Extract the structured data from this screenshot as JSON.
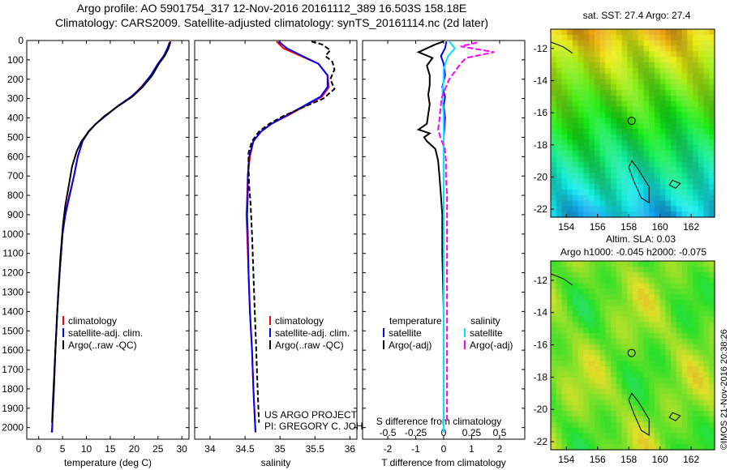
{
  "header": {
    "title_line1": "Argo profile: AO 5901754_317 12-Nov-2016 20161112_389 16.503S 158.18E",
    "title_line2": "Climatology: CARS2009. Satellite-adjusted climatology: synTS_20161114.nc (2d later)"
  },
  "colors": {
    "climatology": "#ff0000",
    "satellite": "#0000ff",
    "argo": "#000000",
    "sal_satellite": "#00e5ff",
    "sal_argo": "#ff00ff"
  },
  "chart_data": [
    {
      "type": "line",
      "xlabel": "temperature (deg C)",
      "ylabel": "",
      "xlim": [
        -2.5,
        31.5
      ],
      "ylim": [
        2060,
        0
      ],
      "xticks": [
        0,
        5,
        10,
        15,
        20,
        25,
        30
      ],
      "yticks": [
        0,
        100,
        200,
        300,
        400,
        500,
        600,
        700,
        800,
        900,
        1000,
        1100,
        1200,
        1300,
        1400,
        1500,
        1600,
        1700,
        1800,
        1900,
        2000
      ],
      "legend": {
        "placement": "lower-center",
        "entries": [
          {
            "label": "climatology",
            "color": "#ff0000"
          },
          {
            "label": "satellite-adj. clim.",
            "color": "#0000ff"
          },
          {
            "label": "Argo(..raw -QC)",
            "color": "#000000"
          }
        ]
      },
      "series": [
        {
          "name": "climatology",
          "color": "#ff0000",
          "points": [
            [
              27.6,
              10
            ],
            [
              27.2,
              40
            ],
            [
              26.2,
              80
            ],
            [
              25,
              120
            ],
            [
              23.5,
              180
            ],
            [
              21.5,
              240
            ],
            [
              19.5,
              290
            ],
            [
              16.5,
              340
            ],
            [
              14,
              390
            ],
            [
              12,
              430
            ],
            [
              10.5,
              470
            ],
            [
              9.2,
              520
            ],
            [
              8.2,
              600
            ],
            [
              7.4,
              700
            ],
            [
              6.4,
              800
            ],
            [
              5.5,
              900
            ],
            [
              5,
              1000
            ],
            [
              4.4,
              1200
            ],
            [
              3.9,
              1400
            ],
            [
              3.5,
              1600
            ],
            [
              3.2,
              1800
            ],
            [
              2.9,
              1950
            ],
            [
              2.8,
              2000
            ],
            [
              2.7,
              2025
            ]
          ]
        },
        {
          "name": "satellite-adj. clim.",
          "color": "#0000ff",
          "points": [
            [
              27.4,
              10
            ],
            [
              27,
              40
            ],
            [
              26.2,
              80
            ],
            [
              25,
              120
            ],
            [
              23.5,
              180
            ],
            [
              21.6,
              240
            ],
            [
              19.4,
              290
            ],
            [
              16.5,
              340
            ],
            [
              14,
              390
            ],
            [
              12,
              430
            ],
            [
              10.4,
              470
            ],
            [
              9.2,
              520
            ],
            [
              8.2,
              600
            ],
            [
              7.4,
              700
            ],
            [
              6.5,
              800
            ],
            [
              5.6,
              900
            ],
            [
              5,
              1000
            ],
            [
              4.4,
              1200
            ],
            [
              3.9,
              1400
            ],
            [
              3.5,
              1600
            ],
            [
              3.2,
              1800
            ],
            [
              2.9,
              1950
            ],
            [
              2.8,
              2025
            ]
          ]
        },
        {
          "name": "Argo(..raw -QC)",
          "color": "#000000",
          "points": [
            [
              27.6,
              5
            ],
            [
              27.2,
              40
            ],
            [
              26.4,
              80
            ],
            [
              25.2,
              120
            ],
            [
              23.8,
              180
            ],
            [
              21.8,
              240
            ],
            [
              19.6,
              290
            ],
            [
              16.6,
              340
            ],
            [
              13.8,
              390
            ],
            [
              12,
              430
            ],
            [
              10.5,
              470
            ],
            [
              9,
              520
            ],
            [
              8,
              570
            ],
            [
              7,
              650
            ],
            [
              6.3,
              750
            ],
            [
              5.6,
              850
            ],
            [
              5.1,
              950
            ],
            [
              4.6,
              1100
            ],
            [
              4.1,
              1300
            ],
            [
              3.7,
              1500
            ],
            [
              3.3,
              1700
            ],
            [
              3,
              1850
            ],
            [
              2.8,
              1975
            ]
          ]
        }
      ]
    },
    {
      "type": "line",
      "xlabel": "salinity",
      "ylabel": "",
      "xlim": [
        33.78,
        36.1
      ],
      "ylim": [
        2060,
        0
      ],
      "xticks": [
        34,
        34.5,
        35,
        35.5,
        36
      ],
      "annotation": [
        "US ARGO PROJECT",
        "PI: GREGORY C. JOHNSON"
      ],
      "legend": {
        "placement": "lower-center",
        "entries": [
          {
            "label": "climatology",
            "color": "#ff0000"
          },
          {
            "label": "satellite-adj. clim.",
            "color": "#0000ff"
          },
          {
            "label": "Argo(..raw -QC)",
            "color": "#000000"
          }
        ]
      },
      "series": [
        {
          "name": "climatology",
          "color": "#ff0000",
          "points": [
            [
              34.95,
              5
            ],
            [
              35.05,
              40
            ],
            [
              35.3,
              80
            ],
            [
              35.55,
              120
            ],
            [
              35.68,
              180
            ],
            [
              35.7,
              240
            ],
            [
              35.6,
              290
            ],
            [
              35.35,
              340
            ],
            [
              35.1,
              390
            ],
            [
              34.88,
              430
            ],
            [
              34.73,
              470
            ],
            [
              34.62,
              520
            ],
            [
              34.57,
              600
            ],
            [
              34.54,
              700
            ],
            [
              34.53,
              800
            ],
            [
              34.52,
              900
            ],
            [
              34.53,
              1000
            ],
            [
              34.55,
              1200
            ],
            [
              34.57,
              1400
            ],
            [
              34.6,
              1600
            ],
            [
              34.62,
              1800
            ],
            [
              34.64,
              1950
            ],
            [
              34.65,
              2025
            ]
          ]
        },
        {
          "name": "satellite-adj. clim.",
          "color": "#0000ff",
          "points": [
            [
              34.98,
              5
            ],
            [
              35.1,
              40
            ],
            [
              35.32,
              80
            ],
            [
              35.55,
              120
            ],
            [
              35.68,
              180
            ],
            [
              35.68,
              240
            ],
            [
              35.58,
              290
            ],
            [
              35.33,
              340
            ],
            [
              35.08,
              390
            ],
            [
              34.88,
              430
            ],
            [
              34.73,
              470
            ],
            [
              34.62,
              520
            ],
            [
              34.56,
              600
            ],
            [
              34.54,
              700
            ],
            [
              34.54,
              800
            ],
            [
              34.53,
              900
            ],
            [
              34.54,
              1000
            ],
            [
              34.55,
              1200
            ],
            [
              34.57,
              1400
            ],
            [
              34.6,
              1600
            ],
            [
              34.62,
              1800
            ],
            [
              34.64,
              1950
            ],
            [
              34.65,
              2025
            ]
          ]
        },
        {
          "name": "Argo(..raw -QC)",
          "color": "#000000",
          "points": [
            [
              35.45,
              5
            ],
            [
              35.6,
              20
            ],
            [
              35.72,
              50
            ],
            [
              35.65,
              80
            ],
            [
              35.75,
              110
            ],
            [
              35.78,
              150
            ],
            [
              35.72,
              200
            ],
            [
              35.78,
              250
            ],
            [
              35.62,
              300
            ],
            [
              35.3,
              350
            ],
            [
              35.05,
              390
            ],
            [
              34.85,
              430
            ],
            [
              34.7,
              470
            ],
            [
              34.6,
              520
            ],
            [
              34.55,
              580
            ],
            [
              34.55,
              650
            ],
            [
              34.56,
              750
            ],
            [
              34.58,
              850
            ],
            [
              34.6,
              1000
            ],
            [
              34.62,
              1200
            ],
            [
              34.64,
              1400
            ],
            [
              34.66,
              1600
            ],
            [
              34.68,
              1800
            ],
            [
              34.7,
              1975
            ]
          ]
        }
      ]
    },
    {
      "type": "line",
      "xlabel": "T difference from climatology",
      "xlabel2": "S difference from climatology",
      "ylabel": "",
      "xlim": [
        -2.9,
        2.9
      ],
      "xlim2": [
        -0.725,
        0.725
      ],
      "ylim": [
        2060,
        0
      ],
      "xticks": [
        -2,
        -1,
        0,
        1,
        2
      ],
      "xticks2": [
        "-0.5",
        "-0.25",
        "0",
        "0.25",
        "0.5"
      ],
      "legend": {
        "placement": "lower-center",
        "headers": [
          "temperature",
          "salinity"
        ],
        "entries": [
          {
            "label": "satellite",
            "color": "#0000ff"
          },
          {
            "label": "Argo(-adj)",
            "color": "#000000"
          },
          {
            "label": "satellite",
            "color": "#00e5ff"
          },
          {
            "label": "Argo(-adj)",
            "color": "#ff00ff"
          }
        ]
      },
      "series": [
        {
          "name": "temperature satellite",
          "color": "#0000ff",
          "points": [
            [
              0.1,
              5
            ],
            [
              0.05,
              40
            ],
            [
              -0.1,
              80
            ],
            [
              0,
              120
            ],
            [
              0.05,
              180
            ],
            [
              -0.05,
              240
            ],
            [
              0.05,
              290
            ],
            [
              0,
              340
            ],
            [
              0.05,
              400
            ],
            [
              0,
              500
            ],
            [
              0,
              700
            ],
            [
              0,
              1000
            ],
            [
              0,
              1500
            ],
            [
              0,
              2025
            ]
          ]
        },
        {
          "name": "temperature Argo(-adj)",
          "color": "#000000",
          "points": [
            [
              0,
              5
            ],
            [
              -0.3,
              20
            ],
            [
              -0.9,
              60
            ],
            [
              -0.4,
              90
            ],
            [
              -0.6,
              130
            ],
            [
              -0.5,
              180
            ],
            [
              -0.5,
              230
            ],
            [
              -0.55,
              280
            ],
            [
              -0.5,
              330
            ],
            [
              -0.55,
              380
            ],
            [
              -0.6,
              430
            ],
            [
              -0.9,
              460
            ],
            [
              -0.5,
              480
            ],
            [
              -0.7,
              500
            ],
            [
              -0.6,
              520
            ],
            [
              -0.3,
              560
            ],
            [
              -0.2,
              620
            ],
            [
              -0.15,
              700
            ],
            [
              -0.1,
              800
            ],
            [
              -0.05,
              900
            ],
            [
              -0.05,
              1100
            ],
            [
              0,
              1400
            ],
            [
              0,
              1700
            ],
            [
              0,
              1975
            ]
          ]
        },
        {
          "name": "salinity satellite",
          "color": "#00e5ff",
          "points": [
            [
              0.05,
              5
            ],
            [
              0.1,
              40
            ],
            [
              0.04,
              80
            ],
            [
              0.02,
              110
            ],
            [
              0,
              150
            ],
            [
              0,
              200
            ],
            [
              -0.01,
              260
            ],
            [
              -0.01,
              320
            ],
            [
              0,
              380
            ],
            [
              0,
              450
            ],
            [
              0,
              600
            ],
            [
              0,
              800
            ],
            [
              0,
              1100
            ],
            [
              0,
              1500
            ],
            [
              0,
              2025
            ]
          ]
        },
        {
          "name": "salinity Argo(-adj)",
          "color": "#ff00ff",
          "points": [
            [
              0.3,
              10
            ],
            [
              0.15,
              30
            ],
            [
              0.45,
              60
            ],
            [
              0.2,
              90
            ],
            [
              0.15,
              120
            ],
            [
              0.1,
              160
            ],
            [
              0.05,
              200
            ],
            [
              0.02,
              240
            ],
            [
              -0.02,
              300
            ],
            [
              -0.03,
              360
            ],
            [
              -0.04,
              420
            ],
            [
              -0.05,
              460
            ],
            [
              -0.03,
              500
            ],
            [
              0.01,
              560
            ],
            [
              0.02,
              620
            ],
            [
              0.02,
              700
            ],
            [
              0.03,
              800
            ],
            [
              0.03,
              1000
            ],
            [
              0.03,
              1300
            ],
            [
              0.03,
              1600
            ],
            [
              0.03,
              1975
            ]
          ]
        }
      ]
    },
    {
      "type": "heatmap",
      "title": "sat. SST: 27.4 Argo: 27.4",
      "xlim": [
        153,
        163.5
      ],
      "ylim": [
        -22.5,
        -10.8
      ],
      "xticks": [
        154,
        156,
        158,
        160,
        162
      ],
      "yticks": [
        -12,
        -14,
        -16,
        -18,
        -20,
        -22
      ],
      "marker": {
        "lon": 158.18,
        "lat": -16.503
      }
    },
    {
      "type": "heatmap",
      "title": "Altim. SLA: 0.03",
      "subtitle": "Argo h1000: -0.045 h2000: -0.075",
      "xlim": [
        153,
        163.5
      ],
      "ylim": [
        -22.5,
        -10.8
      ],
      "xticks": [
        154,
        156,
        158,
        160,
        162
      ],
      "yticks": [
        -12,
        -14,
        -16,
        -18,
        -20,
        -22
      ],
      "marker": {
        "lon": 158.18,
        "lat": -16.503
      }
    }
  ],
  "footer": {
    "credit": "©IMOS 21-Nov-2016 20:38:26"
  }
}
